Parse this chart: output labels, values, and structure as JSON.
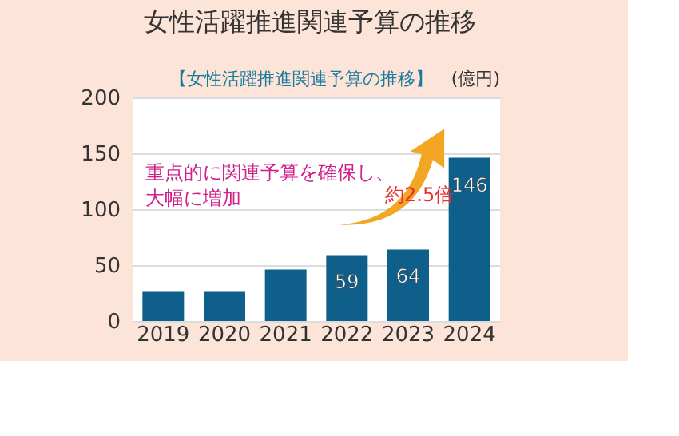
{
  "chart_data": {
    "type": "bar",
    "title": "女性活躍推進関連予算の推移",
    "subtitle": "【女性活躍推進関連予算の推移】",
    "ylabel": "(億円)",
    "categories": [
      "2019",
      "2020",
      "2021",
      "2022",
      "2023",
      "2024"
    ],
    "values": [
      26,
      26,
      46,
      59,
      64,
      146
    ],
    "value_labels": [
      null,
      null,
      null,
      "59",
      "64",
      "146"
    ],
    "color": "#0e5f8a",
    "ylim": [
      0,
      200
    ],
    "yticks": [
      0,
      50,
      100,
      150,
      200
    ],
    "grid": "y",
    "annotations": [
      "重点的に関連予算を確保し、大幅に増加",
      "約2.5倍"
    ]
  }
}
